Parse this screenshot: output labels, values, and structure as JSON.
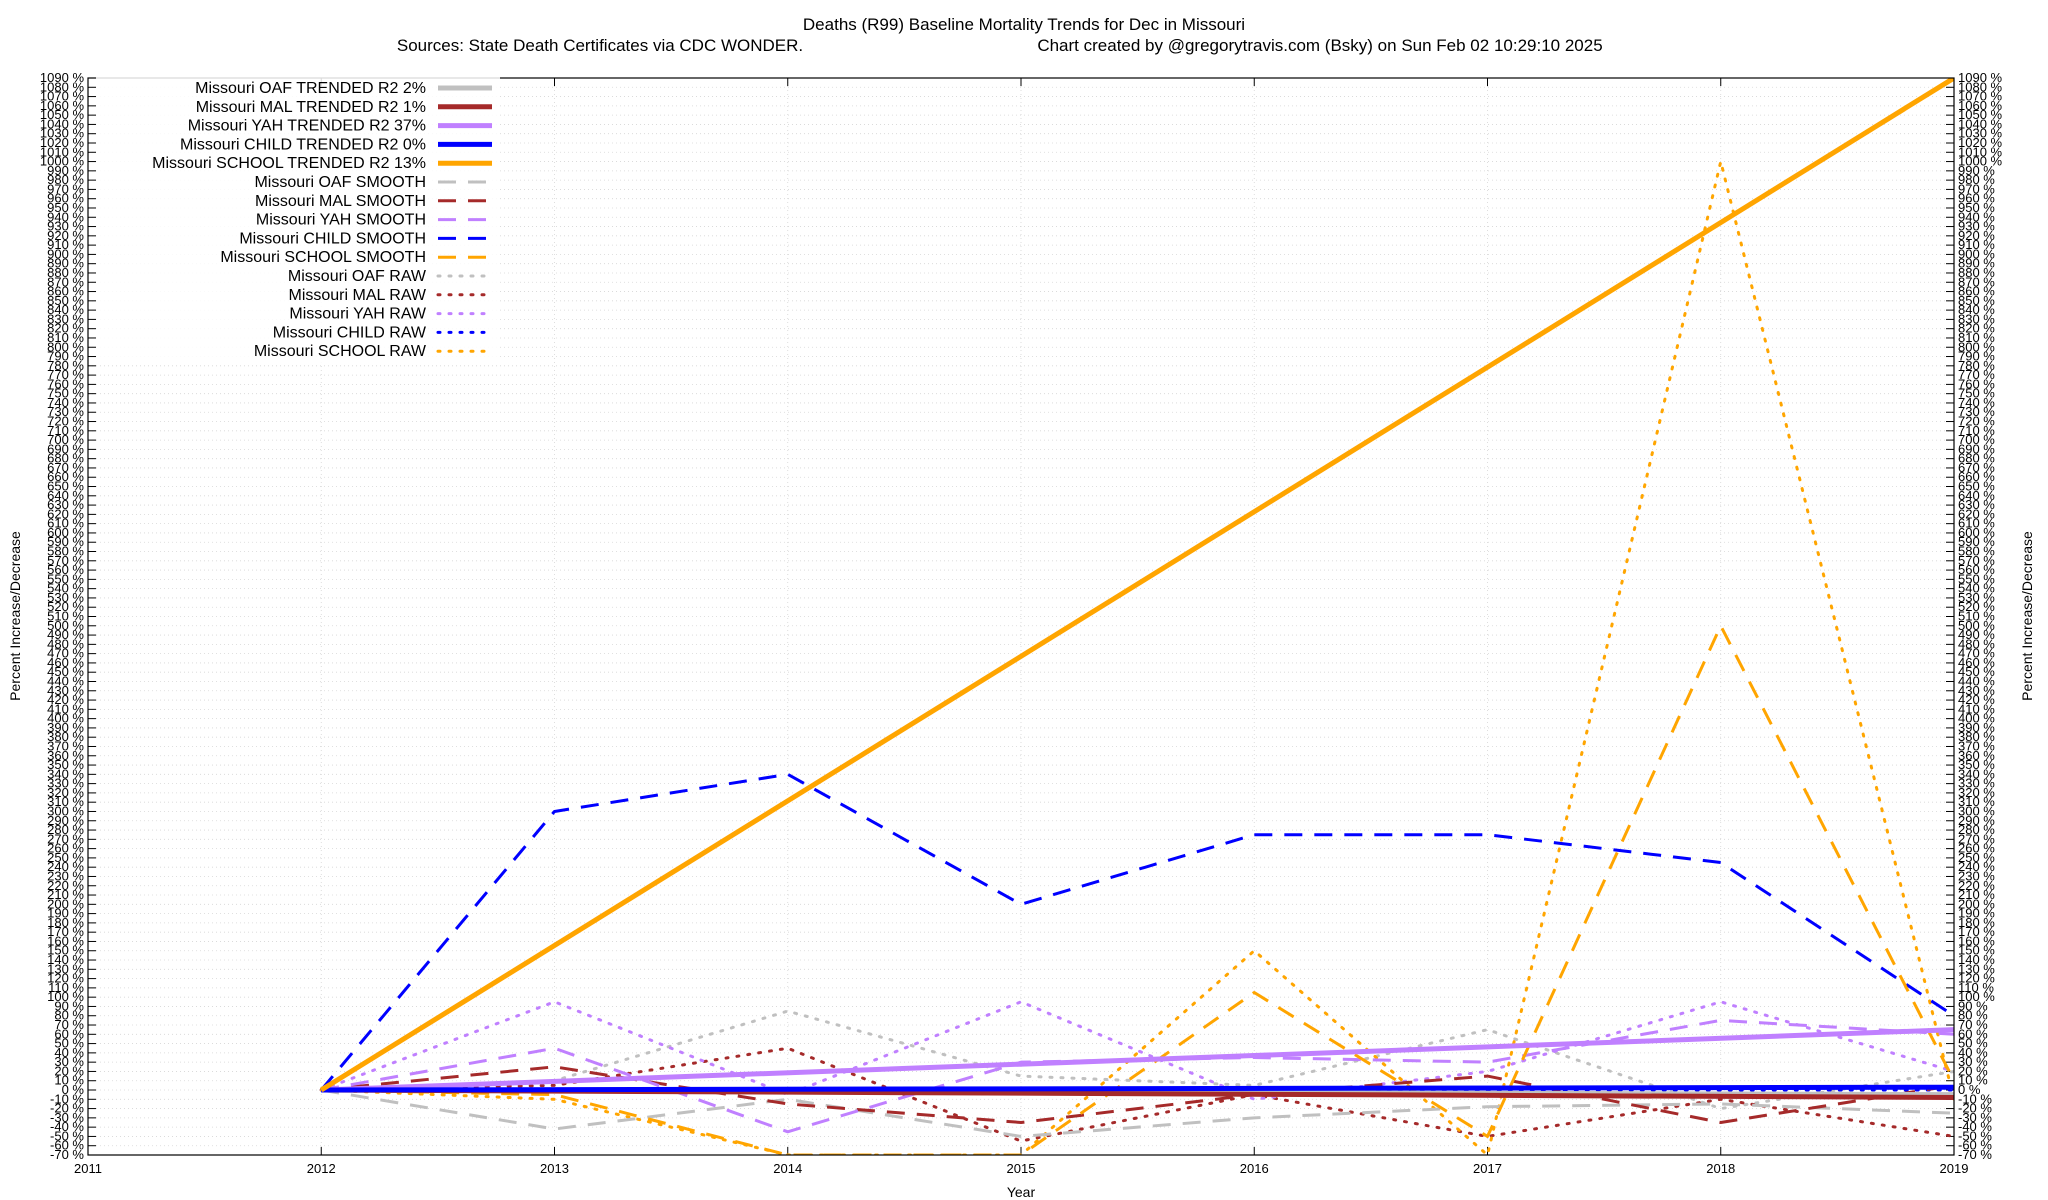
{
  "chart_data": {
    "type": "line",
    "title": "Deaths (R99)  Baseline Mortality Trends for Dec in Missouri",
    "subtitle_left": "Sources: State Death Certificates via CDC WONDER.",
    "subtitle_right": "Chart created by @gregorytravis.com (Bsky) on Sun Feb 02 10:29:10 2025",
    "xlabel": "Year",
    "ylabel_left": "Percent Increase/Decrease",
    "ylabel_right": "Percent Increase/Decrease",
    "xlim": [
      2011,
      2019
    ],
    "ylim": [
      -70,
      1090
    ],
    "y_tick_step": 10,
    "y_tick_suffix": " %",
    "x_ticks": [
      "2011",
      "2012",
      "2013",
      "2014",
      "2015",
      "2016",
      "2017",
      "2018",
      "2019"
    ],
    "grid": true,
    "legend_position": "top-left",
    "series": [
      {
        "name": "Missouri OAF TRENDED R2  2%",
        "style": "trend",
        "color": "#c0c0c0",
        "points": [
          [
            2012,
            0
          ],
          [
            2019,
            -5
          ]
        ]
      },
      {
        "name": "Missouri MAL TRENDED R2  1%",
        "style": "trend",
        "color": "#a52a2a",
        "points": [
          [
            2012,
            0
          ],
          [
            2019,
            -8
          ]
        ]
      },
      {
        "name": "Missouri YAH TRENDED R2  37%",
        "style": "trend",
        "color": "#c080ff",
        "points": [
          [
            2012,
            0
          ],
          [
            2019,
            65
          ]
        ]
      },
      {
        "name": "Missouri CHILD TRENDED R2  0%",
        "style": "trend",
        "color": "#0000ff",
        "points": [
          [
            2012,
            0
          ],
          [
            2019,
            3
          ]
        ]
      },
      {
        "name": "Missouri SCHOOL TRENDED R2  13%",
        "style": "trend",
        "color": "#ffa500",
        "points": [
          [
            2012,
            0
          ],
          [
            2019,
            1090
          ]
        ]
      },
      {
        "name": "Missouri OAF SMOOTH",
        "style": "smooth",
        "color": "#c0c0c0",
        "points": [
          [
            2012,
            0
          ],
          [
            2013,
            -42
          ],
          [
            2014,
            -10
          ],
          [
            2015,
            -50
          ],
          [
            2016,
            -30
          ],
          [
            2017,
            -18
          ],
          [
            2018,
            -15
          ],
          [
            2019,
            -25
          ]
        ]
      },
      {
        "name": "Missouri MAL SMOOTH",
        "style": "smooth",
        "color": "#a52a2a",
        "points": [
          [
            2012,
            0
          ],
          [
            2013,
            25
          ],
          [
            2014,
            -15
          ],
          [
            2015,
            -35
          ],
          [
            2016,
            -5
          ],
          [
            2017,
            15
          ],
          [
            2018,
            -35
          ],
          [
            2019,
            5
          ]
        ]
      },
      {
        "name": "Missouri YAH SMOOTH",
        "style": "smooth",
        "color": "#c080ff",
        "points": [
          [
            2012,
            0
          ],
          [
            2013,
            45
          ],
          [
            2014,
            -45
          ],
          [
            2015,
            30
          ],
          [
            2016,
            35
          ],
          [
            2017,
            30
          ],
          [
            2018,
            75
          ],
          [
            2019,
            60
          ]
        ]
      },
      {
        "name": "Missouri CHILD SMOOTH",
        "style": "smooth",
        "color": "#0000ff",
        "points": [
          [
            2012,
            0
          ],
          [
            2013,
            300
          ],
          [
            2014,
            340
          ],
          [
            2015,
            200
          ],
          [
            2016,
            275
          ],
          [
            2017,
            275
          ],
          [
            2018,
            245
          ],
          [
            2019,
            80
          ]
        ]
      },
      {
        "name": "Missouri SCHOOL SMOOTH",
        "style": "smooth",
        "color": "#ffa500",
        "points": [
          [
            2012,
            0
          ],
          [
            2013,
            -5
          ],
          [
            2014,
            -70
          ],
          [
            2015,
            -70
          ],
          [
            2016,
            105
          ],
          [
            2017,
            -50
          ],
          [
            2018,
            500
          ],
          [
            2019,
            10
          ]
        ]
      },
      {
        "name": "Missouri OAF RAW",
        "style": "raw",
        "color": "#c0c0c0",
        "points": [
          [
            2012,
            0
          ],
          [
            2013,
            10
          ],
          [
            2014,
            85
          ],
          [
            2015,
            15
          ],
          [
            2016,
            5
          ],
          [
            2017,
            65
          ],
          [
            2018,
            -20
          ],
          [
            2019,
            20
          ]
        ]
      },
      {
        "name": "Missouri MAL RAW",
        "style": "raw",
        "color": "#a52a2a",
        "points": [
          [
            2012,
            0
          ],
          [
            2013,
            5
          ],
          [
            2014,
            45
          ],
          [
            2015,
            -55
          ],
          [
            2016,
            -5
          ],
          [
            2017,
            -50
          ],
          [
            2018,
            -10
          ],
          [
            2019,
            -50
          ]
        ]
      },
      {
        "name": "Missouri YAH RAW",
        "style": "raw",
        "color": "#c080ff",
        "points": [
          [
            2012,
            0
          ],
          [
            2013,
            95
          ],
          [
            2014,
            -5
          ],
          [
            2015,
            95
          ],
          [
            2016,
            -10
          ],
          [
            2017,
            20
          ],
          [
            2018,
            95
          ],
          [
            2019,
            20
          ]
        ]
      },
      {
        "name": "Missouri CHILD RAW",
        "style": "raw",
        "color": "#0000ff",
        "points": [
          [
            2012,
            0
          ],
          [
            2013,
            0
          ],
          [
            2014,
            0
          ],
          [
            2015,
            0
          ],
          [
            2016,
            0
          ],
          [
            2017,
            0
          ],
          [
            2018,
            0
          ],
          [
            2019,
            0
          ]
        ]
      },
      {
        "name": "Missouri SCHOOL RAW",
        "style": "raw",
        "color": "#ffa500",
        "points": [
          [
            2012,
            0
          ],
          [
            2013,
            -10
          ],
          [
            2014,
            -70
          ],
          [
            2015,
            -70
          ],
          [
            2016,
            150
          ],
          [
            2017,
            -70
          ],
          [
            2018,
            1000
          ],
          [
            2019,
            -10
          ]
        ]
      }
    ]
  }
}
